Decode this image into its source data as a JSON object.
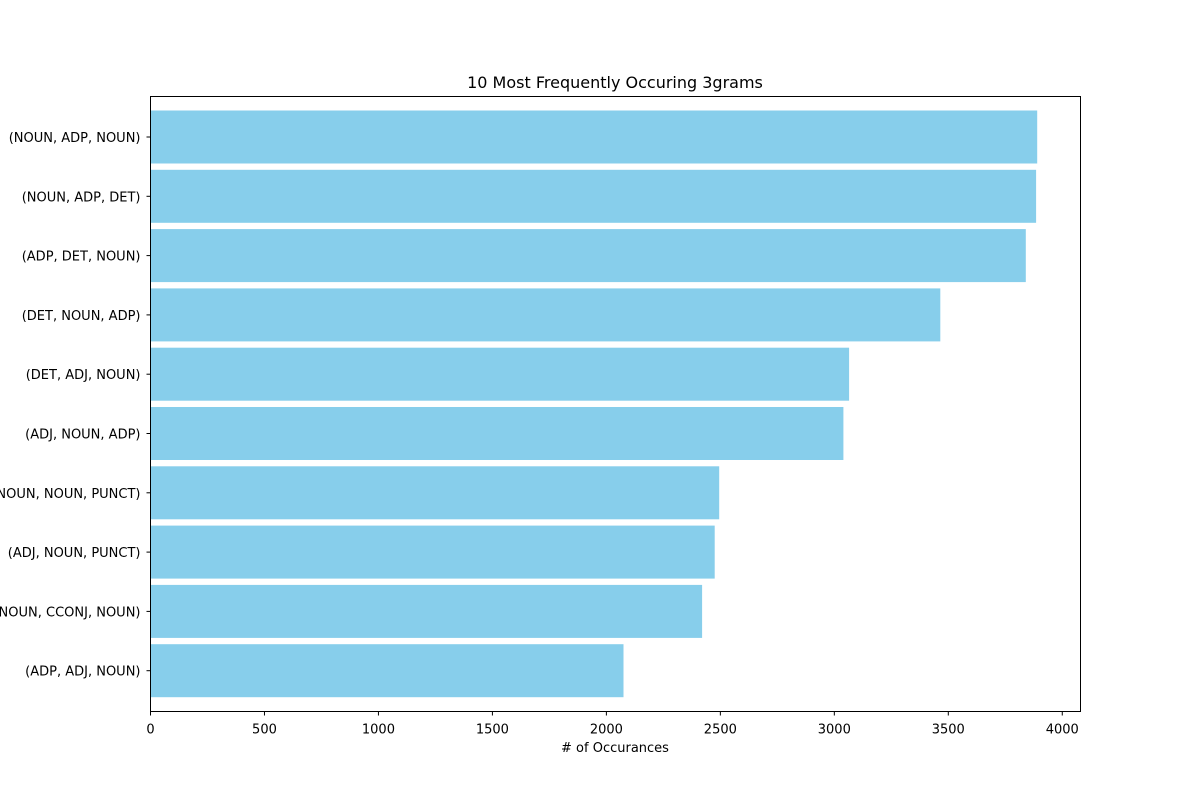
{
  "chart_data": {
    "type": "bar",
    "orientation": "horizontal",
    "title": "10 Most Frequently Occuring 3grams",
    "xlabel": "# of Occurances",
    "ylabel": "",
    "xlim": [
      0,
      4080
    ],
    "xticks": [
      0,
      500,
      1000,
      1500,
      2000,
      2500,
      3000,
      3500,
      4000
    ],
    "xtick_labels": [
      "0",
      "500",
      "1000",
      "1500",
      "2000",
      "2500",
      "3000",
      "3500",
      "4000"
    ],
    "categories": [
      "(NOUN, ADP, NOUN)",
      "(NOUN, ADP, DET)",
      "(ADP, DET, NOUN)",
      "(DET, NOUN, ADP)",
      "(DET, ADJ, NOUN)",
      "(ADJ, NOUN, ADP)",
      "(NOUN, NOUN, PUNCT)",
      "(ADJ, NOUN, PUNCT)",
      "(NOUN, CCONJ, NOUN)",
      "(ADP, ADJ, NOUN)"
    ],
    "values": [
      3890,
      3885,
      3840,
      3465,
      3065,
      3040,
      2495,
      2475,
      2420,
      2075
    ],
    "bar_color": "#87ceeb",
    "grid": false,
    "legend": "none"
  }
}
